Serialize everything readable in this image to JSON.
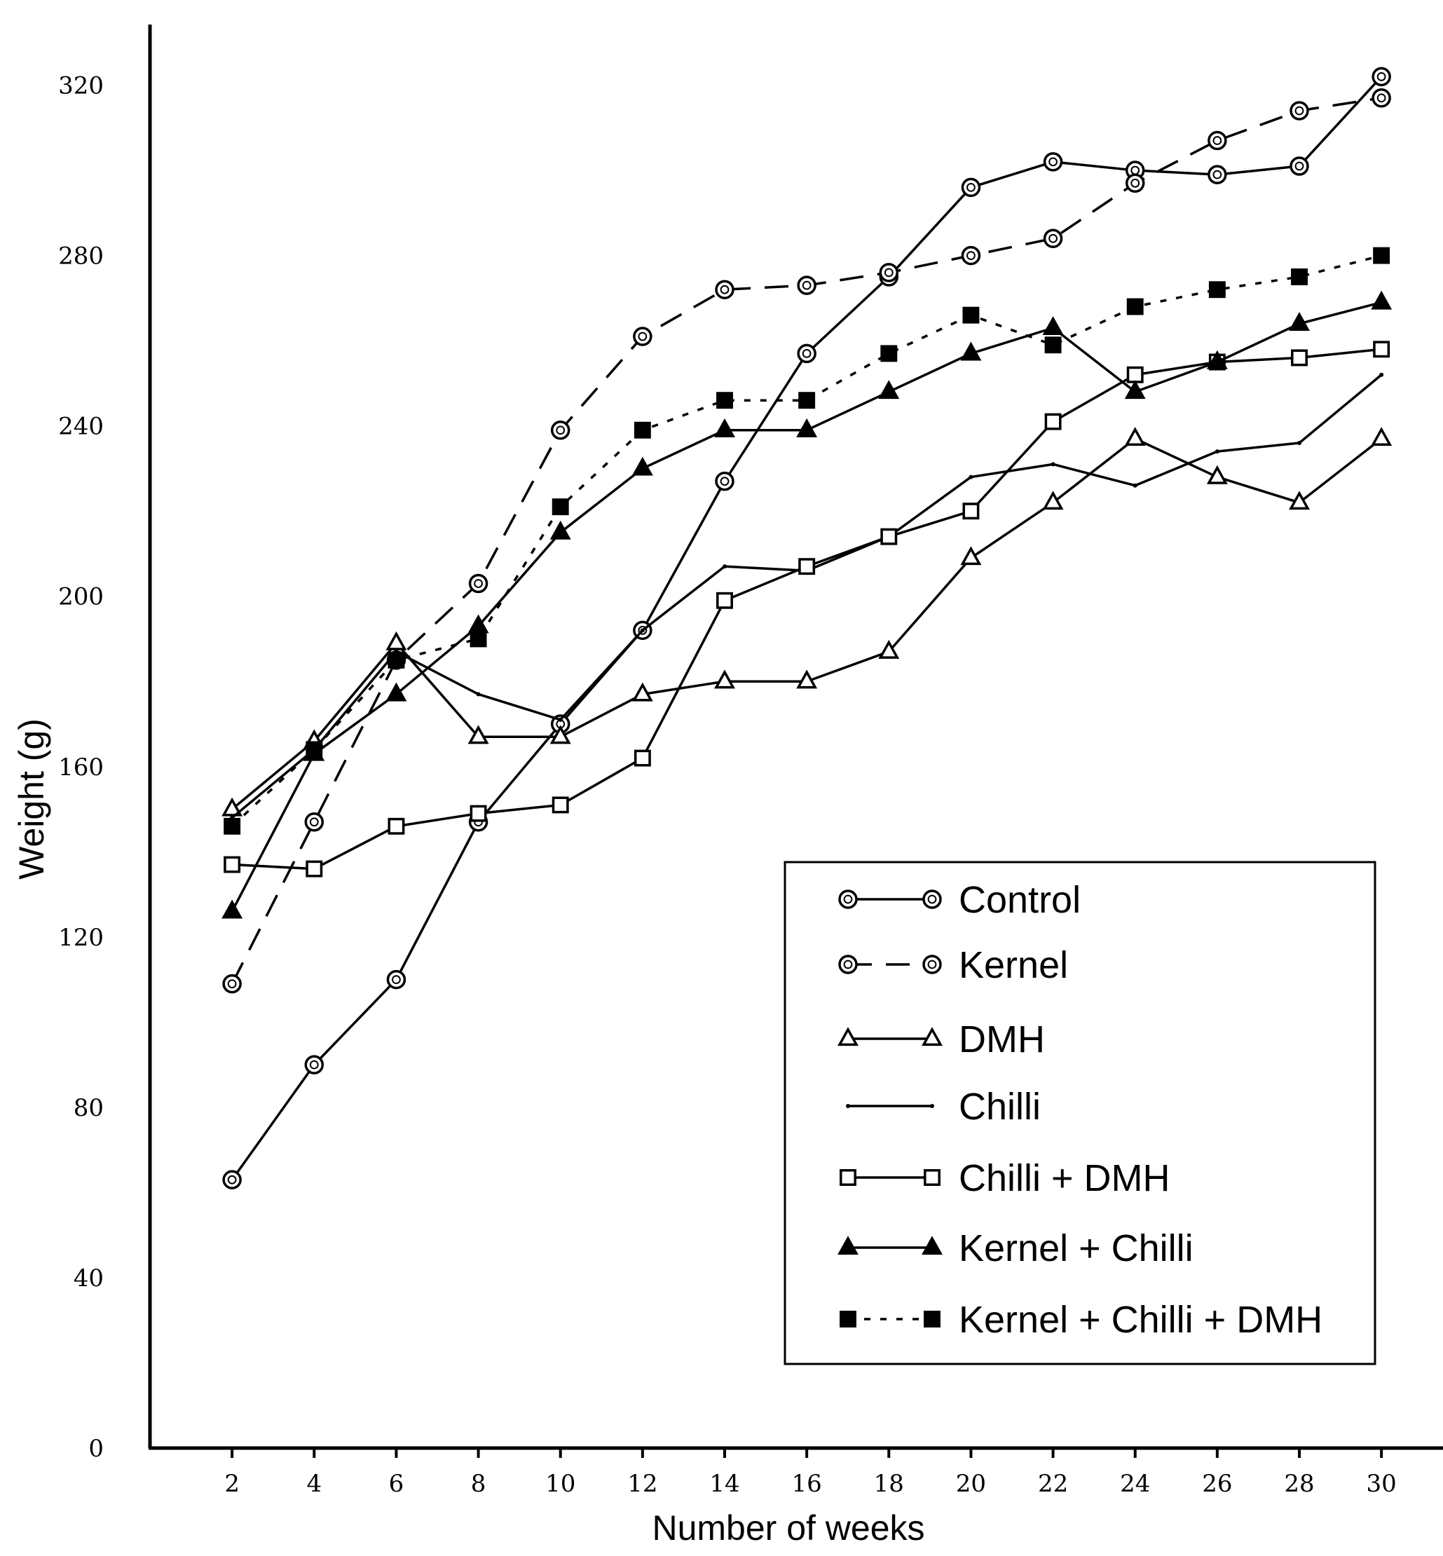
{
  "chart_data": {
    "type": "line",
    "title": "",
    "xlabel": "Number of weeks",
    "ylabel": "Weight (g)",
    "xlim": [
      0,
      31.5
    ],
    "ylim": [
      0,
      340
    ],
    "x_ticks": [
      2,
      4,
      6,
      8,
      10,
      12,
      14,
      16,
      18,
      20,
      22,
      24,
      26,
      28,
      30
    ],
    "y_ticks": [
      0,
      40,
      80,
      120,
      160,
      200,
      240,
      280,
      320
    ],
    "grid": false,
    "legend_position": "bottom-right",
    "x": [
      2,
      4,
      6,
      8,
      10,
      12,
      14,
      16,
      18,
      20,
      22,
      24,
      26,
      28,
      30
    ],
    "series": [
      {
        "name": "Control",
        "marker": "circle-open",
        "line": "solid",
        "values": [
          63,
          90,
          110,
          147,
          170,
          192,
          227,
          257,
          275,
          296,
          302,
          300,
          299,
          301,
          322
        ]
      },
      {
        "name": "Kernel",
        "marker": "circle-open",
        "line": "dashed",
        "values": [
          109,
          147,
          185,
          203,
          239,
          261,
          272,
          273,
          276,
          280,
          284,
          297,
          307,
          314,
          317
        ]
      },
      {
        "name": "DMH",
        "marker": "triangle-open",
        "line": "solid",
        "values": [
          150,
          166,
          189,
          167,
          167,
          177,
          180,
          180,
          187,
          209,
          222,
          237,
          228,
          222,
          237
        ]
      },
      {
        "name": "Chilli",
        "marker": "none",
        "line": "solid",
        "values": [
          148,
          164,
          187,
          177,
          171,
          192,
          207,
          206,
          214,
          228,
          231,
          226,
          234,
          236,
          252
        ]
      },
      {
        "name": "Chilli + DMH",
        "marker": "square-open",
        "line": "solid",
        "values": [
          137,
          136,
          146,
          149,
          151,
          162,
          199,
          207,
          214,
          220,
          241,
          252,
          255,
          256,
          258
        ]
      },
      {
        "name": "Kernel + Chilli",
        "marker": "triangle-filled",
        "line": "solid",
        "values": [
          126,
          163,
          177,
          193,
          215,
          230,
          239,
          239,
          248,
          257,
          263,
          248,
          255,
          264,
          269
        ]
      },
      {
        "name": "Kernel + Chilli + DMH",
        "marker": "square-filled",
        "line": "dotted",
        "values": [
          146,
          164,
          185,
          190,
          221,
          239,
          246,
          246,
          257,
          266,
          259,
          268,
          272,
          275,
          280
        ]
      }
    ]
  }
}
